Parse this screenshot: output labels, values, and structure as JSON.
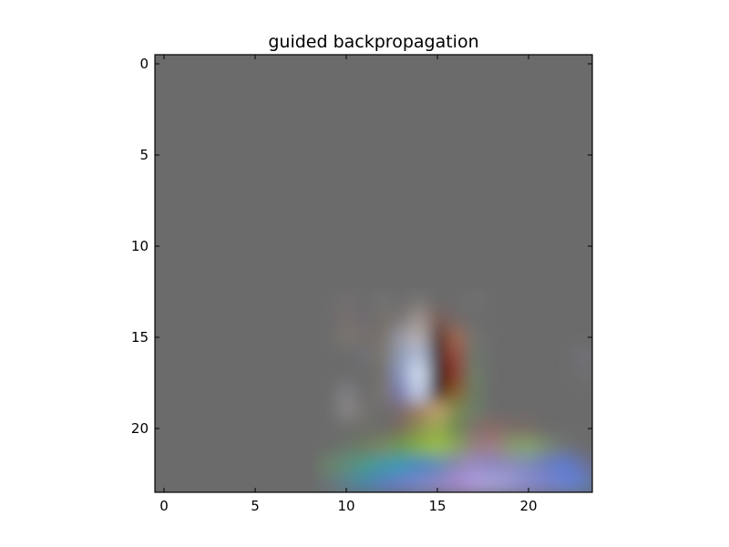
{
  "chart_data": {
    "type": "heatmap",
    "title": "guided backpropagation",
    "image_shape": [
      24,
      24
    ],
    "xlim": [
      -0.5,
      23.5
    ],
    "ylim": [
      23.5,
      -0.5
    ],
    "y_inverted": true,
    "x_ticks": [
      0,
      5,
      10,
      15,
      20
    ],
    "y_ticks": [
      0,
      5,
      10,
      15,
      20
    ],
    "x_tick_labels": [
      "0",
      "5",
      "10",
      "15",
      "20"
    ],
    "y_tick_labels": [
      "0",
      "5",
      "10",
      "15",
      "20"
    ],
    "background_color": "#6b6b6b",
    "pixels": [
      {
        "row": 13,
        "col": 10,
        "color": "#737070"
      },
      {
        "row": 13,
        "col": 12,
        "color": "#757373"
      },
      {
        "row": 13,
        "col": 14,
        "color": "#787675"
      },
      {
        "row": 13,
        "col": 17,
        "color": "#727272"
      },
      {
        "row": 14,
        "col": 10,
        "color": "#787070"
      },
      {
        "row": 14,
        "col": 11,
        "color": "#6f6a72"
      },
      {
        "row": 14,
        "col": 12,
        "color": "#737168"
      },
      {
        "row": 14,
        "col": 13,
        "color": "#7a7577"
      },
      {
        "row": 14,
        "col": 14,
        "color": "#a09690"
      },
      {
        "row": 14,
        "col": 15,
        "color": "#7a5c55"
      },
      {
        "row": 14,
        "col": 16,
        "color": "#736a6a"
      },
      {
        "row": 15,
        "col": 10,
        "color": "#7c7770"
      },
      {
        "row": 15,
        "col": 11,
        "color": "#76706c"
      },
      {
        "row": 15,
        "col": 12,
        "color": "#78706a"
      },
      {
        "row": 15,
        "col": 13,
        "color": "#9a9aa5"
      },
      {
        "row": 15,
        "col": 14,
        "color": "#b8b2b3"
      },
      {
        "row": 15,
        "col": 15,
        "color": "#4b2a22"
      },
      {
        "row": 15,
        "col": 16,
        "color": "#a06850"
      },
      {
        "row": 15,
        "col": 17,
        "color": "#757470"
      },
      {
        "row": 16,
        "col": 11,
        "color": "#6e7078"
      },
      {
        "row": 16,
        "col": 12,
        "color": "#7c786c"
      },
      {
        "row": 16,
        "col": 13,
        "color": "#8f9ab3"
      },
      {
        "row": 16,
        "col": 14,
        "color": "#b4c0dc"
      },
      {
        "row": 16,
        "col": 15,
        "color": "#3e2a26"
      },
      {
        "row": 16,
        "col": 16,
        "color": "#9a4a3a"
      },
      {
        "row": 16,
        "col": 17,
        "color": "#6a786c"
      },
      {
        "row": 16,
        "col": 23,
        "color": "#72727a"
      },
      {
        "row": 17,
        "col": 12,
        "color": "#736f6a"
      },
      {
        "row": 17,
        "col": 13,
        "color": "#8a96c0"
      },
      {
        "row": 17,
        "col": 14,
        "color": "#d8e4f6"
      },
      {
        "row": 17,
        "col": 15,
        "color": "#2a160e"
      },
      {
        "row": 17,
        "col": 16,
        "color": "#8a3628"
      },
      {
        "row": 17,
        "col": 17,
        "color": "#6e7e6a"
      },
      {
        "row": 17,
        "col": 23,
        "color": "#6f7072"
      },
      {
        "row": 18,
        "col": 10,
        "color": "#817f85"
      },
      {
        "row": 18,
        "col": 12,
        "color": "#7a7470"
      },
      {
        "row": 18,
        "col": 13,
        "color": "#7c7cb0"
      },
      {
        "row": 18,
        "col": 14,
        "color": "#c4d0ec"
      },
      {
        "row": 18,
        "col": 15,
        "color": "#402212"
      },
      {
        "row": 18,
        "col": 16,
        "color": "#8a5a28"
      },
      {
        "row": 18,
        "col": 17,
        "color": "#6a7e62"
      },
      {
        "row": 19,
        "col": 10,
        "color": "#8a8888"
      },
      {
        "row": 19,
        "col": 11,
        "color": "#747270"
      },
      {
        "row": 19,
        "col": 13,
        "color": "#7a6a6e"
      },
      {
        "row": 19,
        "col": 14,
        "color": "#9e7e5e"
      },
      {
        "row": 19,
        "col": 15,
        "color": "#c0a070"
      },
      {
        "row": 19,
        "col": 16,
        "color": "#7c8a4e"
      },
      {
        "row": 19,
        "col": 17,
        "color": "#6c7e6a"
      },
      {
        "row": 20,
        "col": 11,
        "color": "#6e6e66"
      },
      {
        "row": 20,
        "col": 13,
        "color": "#7c6a5c"
      },
      {
        "row": 20,
        "col": 14,
        "color": "#8c8c52"
      },
      {
        "row": 20,
        "col": 15,
        "color": "#9aaa4c"
      },
      {
        "row": 20,
        "col": 16,
        "color": "#6e8a52"
      },
      {
        "row": 20,
        "col": 17,
        "color": "#80706a"
      },
      {
        "row": 20,
        "col": 18,
        "color": "#8a6a66"
      },
      {
        "row": 20,
        "col": 19,
        "color": "#7c6c68"
      },
      {
        "row": 20,
        "col": 20,
        "color": "#7a6a66"
      },
      {
        "row": 21,
        "col": 10,
        "color": "#6a766a"
      },
      {
        "row": 21,
        "col": 11,
        "color": "#6e7a62"
      },
      {
        "row": 21,
        "col": 12,
        "color": "#7a8a5e"
      },
      {
        "row": 21,
        "col": 13,
        "color": "#6c9a4c"
      },
      {
        "row": 21,
        "col": 14,
        "color": "#84b040"
      },
      {
        "row": 21,
        "col": 15,
        "color": "#9ac046"
      },
      {
        "row": 21,
        "col": 16,
        "color": "#8aa45a"
      },
      {
        "row": 21,
        "col": 17,
        "color": "#94807e"
      },
      {
        "row": 21,
        "col": 18,
        "color": "#a07c86"
      },
      {
        "row": 21,
        "col": 19,
        "color": "#8a9a6a"
      },
      {
        "row": 21,
        "col": 20,
        "color": "#86a46a"
      },
      {
        "row": 21,
        "col": 21,
        "color": "#7a8a72"
      },
      {
        "row": 21,
        "col": 22,
        "color": "#727474"
      },
      {
        "row": 22,
        "col": 9,
        "color": "#6a8468"
      },
      {
        "row": 22,
        "col": 10,
        "color": "#5e8e7a"
      },
      {
        "row": 22,
        "col": 11,
        "color": "#4a9a8a"
      },
      {
        "row": 22,
        "col": 12,
        "color": "#3a9aa6"
      },
      {
        "row": 22,
        "col": 13,
        "color": "#389ab8"
      },
      {
        "row": 22,
        "col": 14,
        "color": "#4a86c0"
      },
      {
        "row": 22,
        "col": 15,
        "color": "#5a8ab4"
      },
      {
        "row": 22,
        "col": 16,
        "color": "#8a86b0"
      },
      {
        "row": 22,
        "col": 17,
        "color": "#9a8cc4"
      },
      {
        "row": 22,
        "col": 18,
        "color": "#8a86c0"
      },
      {
        "row": 22,
        "col": 19,
        "color": "#8c8cb8"
      },
      {
        "row": 22,
        "col": 20,
        "color": "#7c8ab6"
      },
      {
        "row": 22,
        "col": 21,
        "color": "#6a7cc0"
      },
      {
        "row": 22,
        "col": 22,
        "color": "#5a7cd0"
      },
      {
        "row": 22,
        "col": 23,
        "color": "#6a72a8"
      },
      {
        "row": 23,
        "col": 9,
        "color": "#6a7478"
      },
      {
        "row": 23,
        "col": 10,
        "color": "#5a8090"
      },
      {
        "row": 23,
        "col": 11,
        "color": "#4a86a8"
      },
      {
        "row": 23,
        "col": 12,
        "color": "#5a7ec0"
      },
      {
        "row": 23,
        "col": 13,
        "color": "#6a7cc8"
      },
      {
        "row": 23,
        "col": 14,
        "color": "#7a86cc"
      },
      {
        "row": 23,
        "col": 15,
        "color": "#8e84c8"
      },
      {
        "row": 23,
        "col": 16,
        "color": "#a48ad0"
      },
      {
        "row": 23,
        "col": 17,
        "color": "#b09ae0"
      },
      {
        "row": 23,
        "col": 18,
        "color": "#a8a4dc"
      },
      {
        "row": 23,
        "col": 19,
        "color": "#9a98d8"
      },
      {
        "row": 23,
        "col": 20,
        "color": "#8a8ad2"
      },
      {
        "row": 23,
        "col": 21,
        "color": "#7a84cc"
      },
      {
        "row": 23,
        "col": 22,
        "color": "#6a82d4"
      },
      {
        "row": 23,
        "col": 23,
        "color": "#5e80c8"
      }
    ]
  }
}
